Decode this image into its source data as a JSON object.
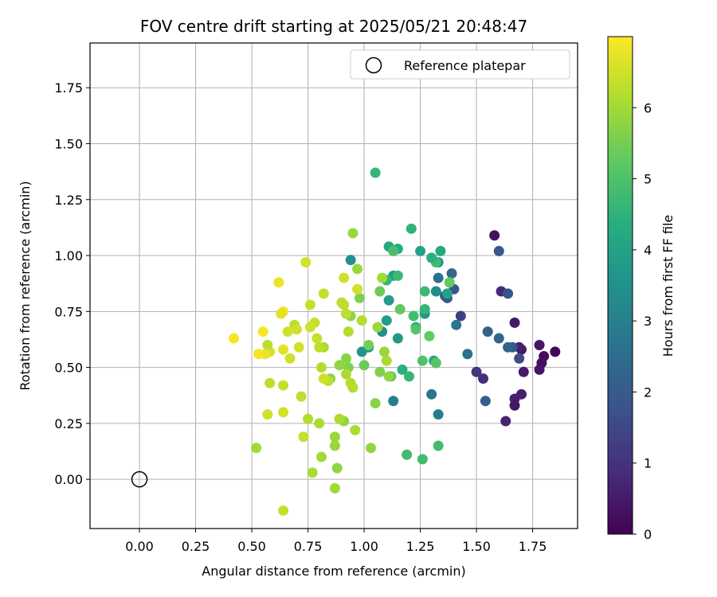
{
  "chart_data": {
    "type": "scatter",
    "title": "FOV centre drift starting at 2025/05/21 20:48:47",
    "xlabel": "Angular distance from reference (arcmin)",
    "ylabel": "Rotation from reference (arcmin)",
    "xlim": [
      -0.22,
      1.95
    ],
    "ylim": [
      -0.22,
      1.95
    ],
    "xticks": [
      "0.00",
      "0.25",
      "0.50",
      "0.75",
      "1.00",
      "1.25",
      "1.50",
      "1.75"
    ],
    "yticks": [
      "0.00",
      "0.25",
      "0.50",
      "0.75",
      "1.00",
      "1.25",
      "1.50",
      "1.75"
    ],
    "grid": true,
    "legend": {
      "position": "top-right",
      "entries": [
        "Reference platepar"
      ]
    },
    "reference_point": {
      "x": 0.0,
      "y": 0.0,
      "marker": "open-circle"
    },
    "colorbar": {
      "label": "Hours from first FF file",
      "colormap": "viridis",
      "range": [
        0,
        7
      ],
      "ticks": [
        "0",
        "1",
        "2",
        "3",
        "4",
        "5",
        "6"
      ]
    },
    "series": [
      {
        "x": [
          1.85,
          1.8,
          1.79,
          1.78,
          1.78,
          1.71,
          1.7,
          1.7,
          1.69,
          1.67,
          1.67,
          1.67,
          1.63,
          1.61,
          1.58,
          1.53,
          1.5
        ],
        "y": [
          0.57,
          0.55,
          0.52,
          0.49,
          0.6,
          0.48,
          0.58,
          0.38,
          0.59,
          0.7,
          0.36,
          0.33,
          0.26,
          0.84,
          1.09,
          0.45,
          0.48
        ],
        "hours": [
          0.1,
          0.2,
          0.3,
          0.4,
          0.4,
          0.5,
          0.5,
          0.6,
          0.6,
          0.5,
          0.6,
          0.4,
          0.7,
          0.8,
          0.3,
          0.9,
          1.1
        ]
      },
      {
        "x": [
          1.69,
          1.66,
          1.64,
          1.64,
          1.6,
          1.6,
          1.55,
          1.54,
          1.43,
          1.4,
          1.39,
          1.37,
          1.36,
          1.33,
          1.33,
          1.3,
          1.13
        ],
        "y": [
          0.54,
          0.59,
          0.83,
          0.59,
          1.02,
          0.63,
          0.66,
          0.35,
          0.73,
          0.85,
          0.92,
          0.81,
          0.82,
          0.9,
          0.29,
          0.38,
          0.35
        ],
        "hours": [
          1.6,
          1.9,
          1.8,
          2.2,
          1.9,
          2.3,
          2.2,
          2.1,
          1.3,
          1.9,
          2.3,
          2.0,
          1.9,
          2.6,
          2.9,
          2.7,
          3.0
        ]
      },
      {
        "x": [
          1.46,
          1.41,
          1.37,
          1.33,
          1.32,
          1.31,
          1.27,
          1.25,
          1.23,
          1.21,
          1.15,
          1.13,
          1.11,
          1.11,
          1.1,
          1.08,
          1.02,
          0.99,
          0.94
        ],
        "y": [
          0.56,
          0.69,
          0.83,
          0.97,
          0.84,
          0.53,
          0.74,
          1.02,
          0.68,
          1.12,
          0.63,
          0.91,
          0.8,
          1.04,
          0.71,
          0.66,
          0.59,
          0.57,
          0.98
        ],
        "hours": [
          2.6,
          2.8,
          4.0,
          3.5,
          3.4,
          4.2,
          3.7,
          4.0,
          4.4,
          4.5,
          3.7,
          3.9,
          3.8,
          4.2,
          3.8,
          3.4,
          3.6,
          3.6,
          3.5
        ]
      },
      {
        "x": [
          1.38,
          1.34,
          1.32,
          1.3,
          1.29,
          1.27,
          1.27,
          1.26,
          1.26,
          1.23,
          1.22,
          1.2,
          1.19,
          1.17,
          1.15,
          1.15,
          1.13,
          1.12,
          1.1,
          1.07,
          1.05
        ],
        "y": [
          0.88,
          1.02,
          0.97,
          0.99,
          0.64,
          0.84,
          0.76,
          0.53,
          0.09,
          0.67,
          0.73,
          0.46,
          0.11,
          0.49,
          1.03,
          0.91,
          1.02,
          0.46,
          0.89,
          0.84,
          1.37
        ],
        "hours": [
          5.3,
          4.2,
          4.8,
          4.4,
          5.3,
          4.7,
          4.6,
          5.0,
          4.8,
          5.1,
          4.8,
          4.6,
          4.8,
          4.4,
          4.3,
          4.7,
          4.9,
          5.2,
          4.6,
          5.4,
          4.6
        ]
      },
      {
        "x": [
          1.33,
          1.32,
          1.16,
          1.11,
          1.1,
          1.09,
          1.08,
          1.07,
          1.06,
          1.05,
          1.03,
          1.02,
          1.0,
          0.98,
          0.97,
          0.97,
          0.95,
          0.94,
          0.93,
          0.92,
          0.92,
          0.91,
          0.9,
          0.89,
          0.88,
          0.87,
          0.87,
          0.85,
          0.82,
          0.81,
          0.81,
          0.8
        ],
        "y": [
          0.15,
          0.52,
          0.76,
          0.46,
          0.53,
          0.57,
          0.9,
          0.48,
          0.68,
          0.34,
          0.14,
          0.6,
          0.51,
          0.81,
          0.85,
          0.94,
          1.1,
          0.73,
          0.5,
          0.54,
          0.47,
          0.26,
          0.79,
          0.51,
          0.05,
          0.19,
          0.15,
          0.45,
          0.59,
          0.1,
          0.5,
          0.25
        ],
        "hours": [
          4.8,
          5.1,
          5.3,
          5.8,
          6.1,
          5.9,
          6.0,
          5.6,
          5.9,
          5.7,
          5.8,
          5.5,
          5.4,
          5.6,
          6.5,
          5.9,
          5.9,
          5.8,
          5.6,
          5.7,
          6.1,
          5.8,
          6.3,
          5.8,
          5.8,
          5.9,
          5.9,
          5.8,
          6.1,
          6.0,
          6.2,
          6.1
        ]
      },
      {
        "x": [
          0.99,
          0.96,
          0.95,
          0.94,
          0.93,
          0.92,
          0.91,
          0.91,
          0.89,
          0.87,
          0.84,
          0.82,
          0.82,
          0.8,
          0.79,
          0.78,
          0.77,
          0.76,
          0.76,
          0.75,
          0.74,
          0.73,
          0.72,
          0.71,
          0.69,
          0.67,
          0.66,
          0.64,
          0.64,
          0.58,
          0.58,
          0.57
        ],
        "y": [
          0.71,
          0.22,
          0.41,
          0.43,
          0.66,
          0.74,
          0.78,
          0.9,
          0.27,
          -0.04,
          0.44,
          0.83,
          0.45,
          0.59,
          0.63,
          0.7,
          0.03,
          0.68,
          0.78,
          0.27,
          0.97,
          0.19,
          0.37,
          0.59,
          0.69,
          0.54,
          0.66,
          0.58,
          0.42,
          0.43,
          0.57,
          0.29
        ],
        "hours": [
          6.2,
          6.1,
          6.2,
          6.2,
          6.2,
          6.3,
          6.3,
          6.5,
          6.1,
          6.0,
          6.3,
          6.4,
          6.5,
          6.3,
          6.4,
          6.4,
          6.1,
          6.5,
          6.4,
          6.2,
          6.5,
          6.4,
          6.3,
          6.5,
          6.3,
          6.5,
          6.5,
          6.7,
          6.4,
          6.3,
          6.6,
          6.5
        ]
      },
      {
        "x": [
          0.57,
          0.56,
          0.55,
          0.53,
          0.52,
          0.64,
          0.64,
          0.64,
          0.63,
          0.62,
          0.42,
          0.7
        ],
        "y": [
          0.6,
          0.56,
          0.66,
          0.56,
          0.14,
          0.3,
          0.75,
          -0.14,
          0.74,
          0.88,
          0.63,
          0.67
        ],
        "hours": [
          6.3,
          6.8,
          6.9,
          6.9,
          6.0,
          6.5,
          6.9,
          6.4,
          6.7,
          6.8,
          6.9,
          6.5
        ]
      }
    ]
  }
}
